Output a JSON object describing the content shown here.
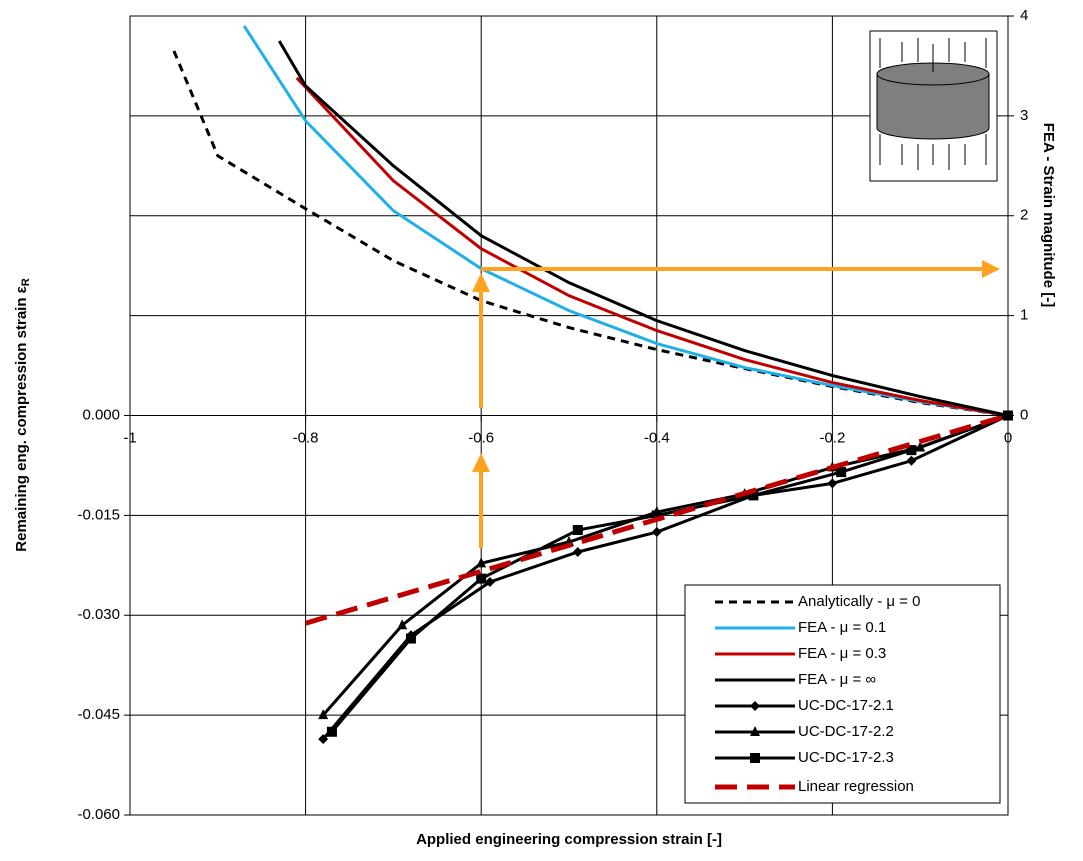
{
  "chart_data": {
    "type": "line",
    "xlabel": "Applied engineering compression strain [-]",
    "ylabel": "Remaining eng. compression strain ε",
    "ylabel_subscript": "R",
    "y2label": "FEA - Strain magnitude [-]",
    "xlim": [
      -1,
      0
    ],
    "xticks": [
      -1,
      -0.8,
      -0.6,
      -0.4,
      -0.2,
      0
    ],
    "ylim": [
      -0.06,
      0.06
    ],
    "yticks": [
      {
        "value": 0,
        "label": "0.000"
      },
      {
        "value": -0.015,
        "label": "-0.015"
      },
      {
        "value": -0.03,
        "label": "-0.030"
      },
      {
        "value": -0.045,
        "label": "-0.045"
      },
      {
        "value": -0.06,
        "label": "-0.060"
      }
    ],
    "y2lim": [
      -4,
      4
    ],
    "y2ticks": [
      0,
      1,
      2,
      3,
      4
    ],
    "grid": true,
    "legend": "lower right",
    "series": [
      {
        "name": "Analytically - μ = 0",
        "color": "#000000",
        "dash": "dashed",
        "marker": "none",
        "axis": "y2",
        "x": [
          -0.95,
          -0.9,
          -0.8,
          -0.7,
          -0.6,
          -0.5,
          -0.4,
          -0.3,
          -0.2,
          -0.1,
          0
        ],
        "values": [
          3.65,
          2.6,
          2.07,
          1.55,
          1.15,
          0.88,
          0.66,
          0.47,
          0.29,
          0.13,
          0
        ]
      },
      {
        "name": "FEA - μ = 0.1",
        "color": "#1fb0e8",
        "dash": "solid",
        "marker": "none",
        "axis": "y2",
        "x": [
          -0.87,
          -0.8,
          -0.7,
          -0.6,
          -0.5,
          -0.4,
          -0.3,
          -0.2,
          -0.1,
          0
        ],
        "values": [
          3.9,
          2.95,
          2.05,
          1.47,
          1.05,
          0.72,
          0.48,
          0.3,
          0.14,
          0
        ]
      },
      {
        "name": "FEA - μ = 0.3",
        "color": "#c00000",
        "dash": "solid",
        "marker": "none",
        "axis": "y2",
        "x": [
          -0.81,
          -0.7,
          -0.6,
          -0.5,
          -0.4,
          -0.3,
          -0.2,
          -0.1,
          0
        ],
        "values": [
          3.38,
          2.35,
          1.67,
          1.2,
          0.85,
          0.56,
          0.33,
          0.15,
          0
        ]
      },
      {
        "name": "FEA - μ = ∞",
        "color": "#000000",
        "dash": "solid",
        "marker": "none",
        "axis": "y2",
        "x": [
          -0.83,
          -0.8,
          -0.7,
          -0.6,
          -0.5,
          -0.4,
          -0.3,
          -0.2,
          -0.1,
          0
        ],
        "values": [
          3.75,
          3.3,
          2.5,
          1.8,
          1.33,
          0.95,
          0.65,
          0.4,
          0.19,
          0
        ]
      },
      {
        "name": "UC-DC-17-2.1",
        "color": "#000000",
        "dash": "solid",
        "marker": "diamond",
        "x": [
          -0.78,
          -0.68,
          -0.59,
          -0.49,
          -0.4,
          -0.29,
          -0.2,
          -0.11,
          0
        ],
        "values": [
          -0.0486,
          -0.033,
          -0.025,
          -0.0205,
          -0.0175,
          -0.012,
          -0.0102,
          -0.0068,
          0
        ]
      },
      {
        "name": "UC-DC-17-2.2",
        "color": "#000000",
        "dash": "solid",
        "marker": "triangle",
        "x": [
          -0.78,
          -0.69,
          -0.6,
          -0.5,
          -0.4,
          -0.3,
          -0.2,
          -0.1,
          0
        ],
        "values": [
          -0.045,
          -0.0315,
          -0.0222,
          -0.019,
          -0.0145,
          -0.0118,
          -0.0078,
          -0.0048,
          0
        ]
      },
      {
        "name": "UC-DC-17-2.3",
        "color": "#000000",
        "dash": "solid",
        "marker": "square",
        "x": [
          -0.77,
          -0.68,
          -0.6,
          -0.49,
          -0.4,
          -0.29,
          -0.19,
          -0.11,
          0
        ],
        "values": [
          -0.0475,
          -0.0335,
          -0.0245,
          -0.0172,
          -0.015,
          -0.012,
          -0.0085,
          -0.0052,
          0
        ]
      },
      {
        "name": "Linear regression",
        "color": "#c00000",
        "dash": "longdash",
        "marker": "none",
        "x": [
          -0.8,
          0
        ],
        "values": [
          -0.0312,
          0
        ]
      }
    ]
  }
}
